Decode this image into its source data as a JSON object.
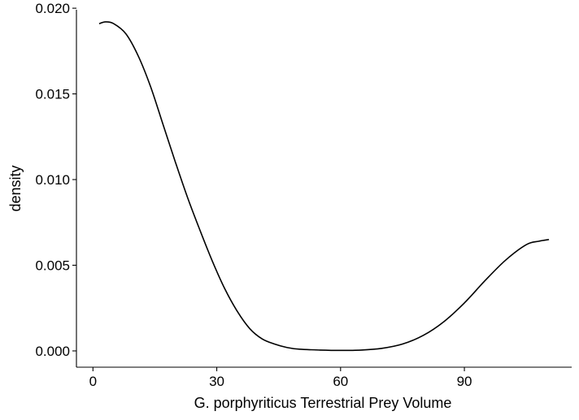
{
  "chart_data": {
    "type": "line",
    "title": "",
    "xlabel": "G. porphyriticus Terrestrial Prey Volume",
    "ylabel": "density",
    "xlim": [
      -4,
      116
    ],
    "ylim": [
      -0.00095,
      0.0201
    ],
    "x_ticks": [
      0,
      30,
      60,
      90
    ],
    "x_tick_labels": [
      "0",
      "30",
      "60",
      "90"
    ],
    "y_ticks": [
      0,
      0.005,
      0.01,
      0.015,
      0.02
    ],
    "y_tick_labels": [
      "0.000",
      "0.005",
      "0.010",
      "0.015",
      "0.020"
    ],
    "grid": false,
    "legend": "none",
    "line_color": "#000000",
    "series": [
      {
        "x": [
          1.5,
          3,
          5,
          8,
          11,
          14,
          17,
          20,
          23,
          26,
          29,
          32,
          35,
          38,
          41,
          44,
          47,
          50,
          55,
          60,
          65,
          70,
          75,
          80,
          85,
          90,
          95,
          100,
          105,
          108,
          110.5
        ],
        "y": [
          0.0191,
          0.0192,
          0.0191,
          0.0185,
          0.0172,
          0.0154,
          0.0132,
          0.011,
          0.0089,
          0.007,
          0.0052,
          0.0036,
          0.0023,
          0.0013,
          0.0007,
          0.0004,
          0.0002,
          0.0001,
          5e-05,
          3e-05,
          5e-05,
          0.00015,
          0.0004,
          0.0009,
          0.0017,
          0.0028,
          0.0041,
          0.0053,
          0.0062,
          0.0064,
          0.0065
        ]
      }
    ]
  }
}
